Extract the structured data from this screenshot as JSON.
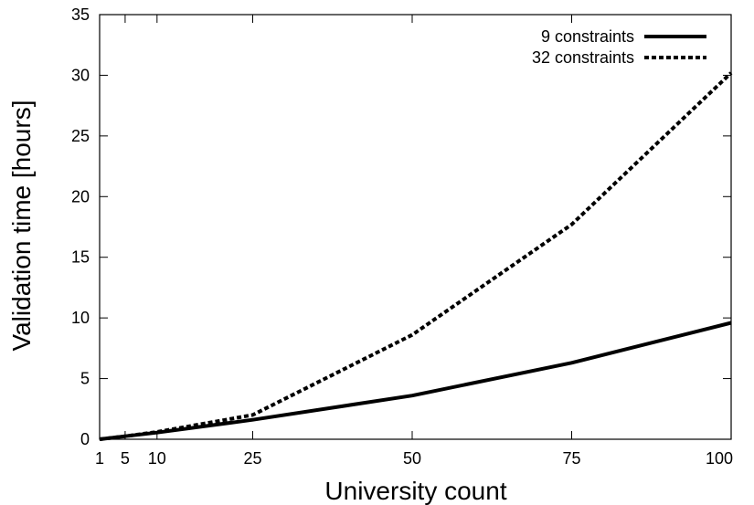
{
  "chart_data": {
    "type": "line",
    "xlabel": "University count",
    "ylabel": "Validation time [hours]",
    "xlim": [
      1,
      100
    ],
    "ylim": [
      0,
      35
    ],
    "x_ticks": [
      1,
      5,
      10,
      25,
      50,
      75,
      100
    ],
    "y_ticks": [
      0,
      5,
      10,
      15,
      20,
      25,
      30,
      35
    ],
    "grid": false,
    "legend_position": "top-right",
    "x": [
      1,
      5,
      10,
      25,
      50,
      75,
      100
    ],
    "series": [
      {
        "name": "9 constraints",
        "style": "solid",
        "color": "#000000",
        "values": [
          0.0,
          0.25,
          0.55,
          1.6,
          3.6,
          6.3,
          9.6
        ]
      },
      {
        "name": "32 constraints",
        "style": "dashed",
        "color": "#000000",
        "values": [
          0.0,
          0.25,
          0.6,
          2.0,
          8.6,
          17.7,
          30.2
        ]
      }
    ]
  }
}
